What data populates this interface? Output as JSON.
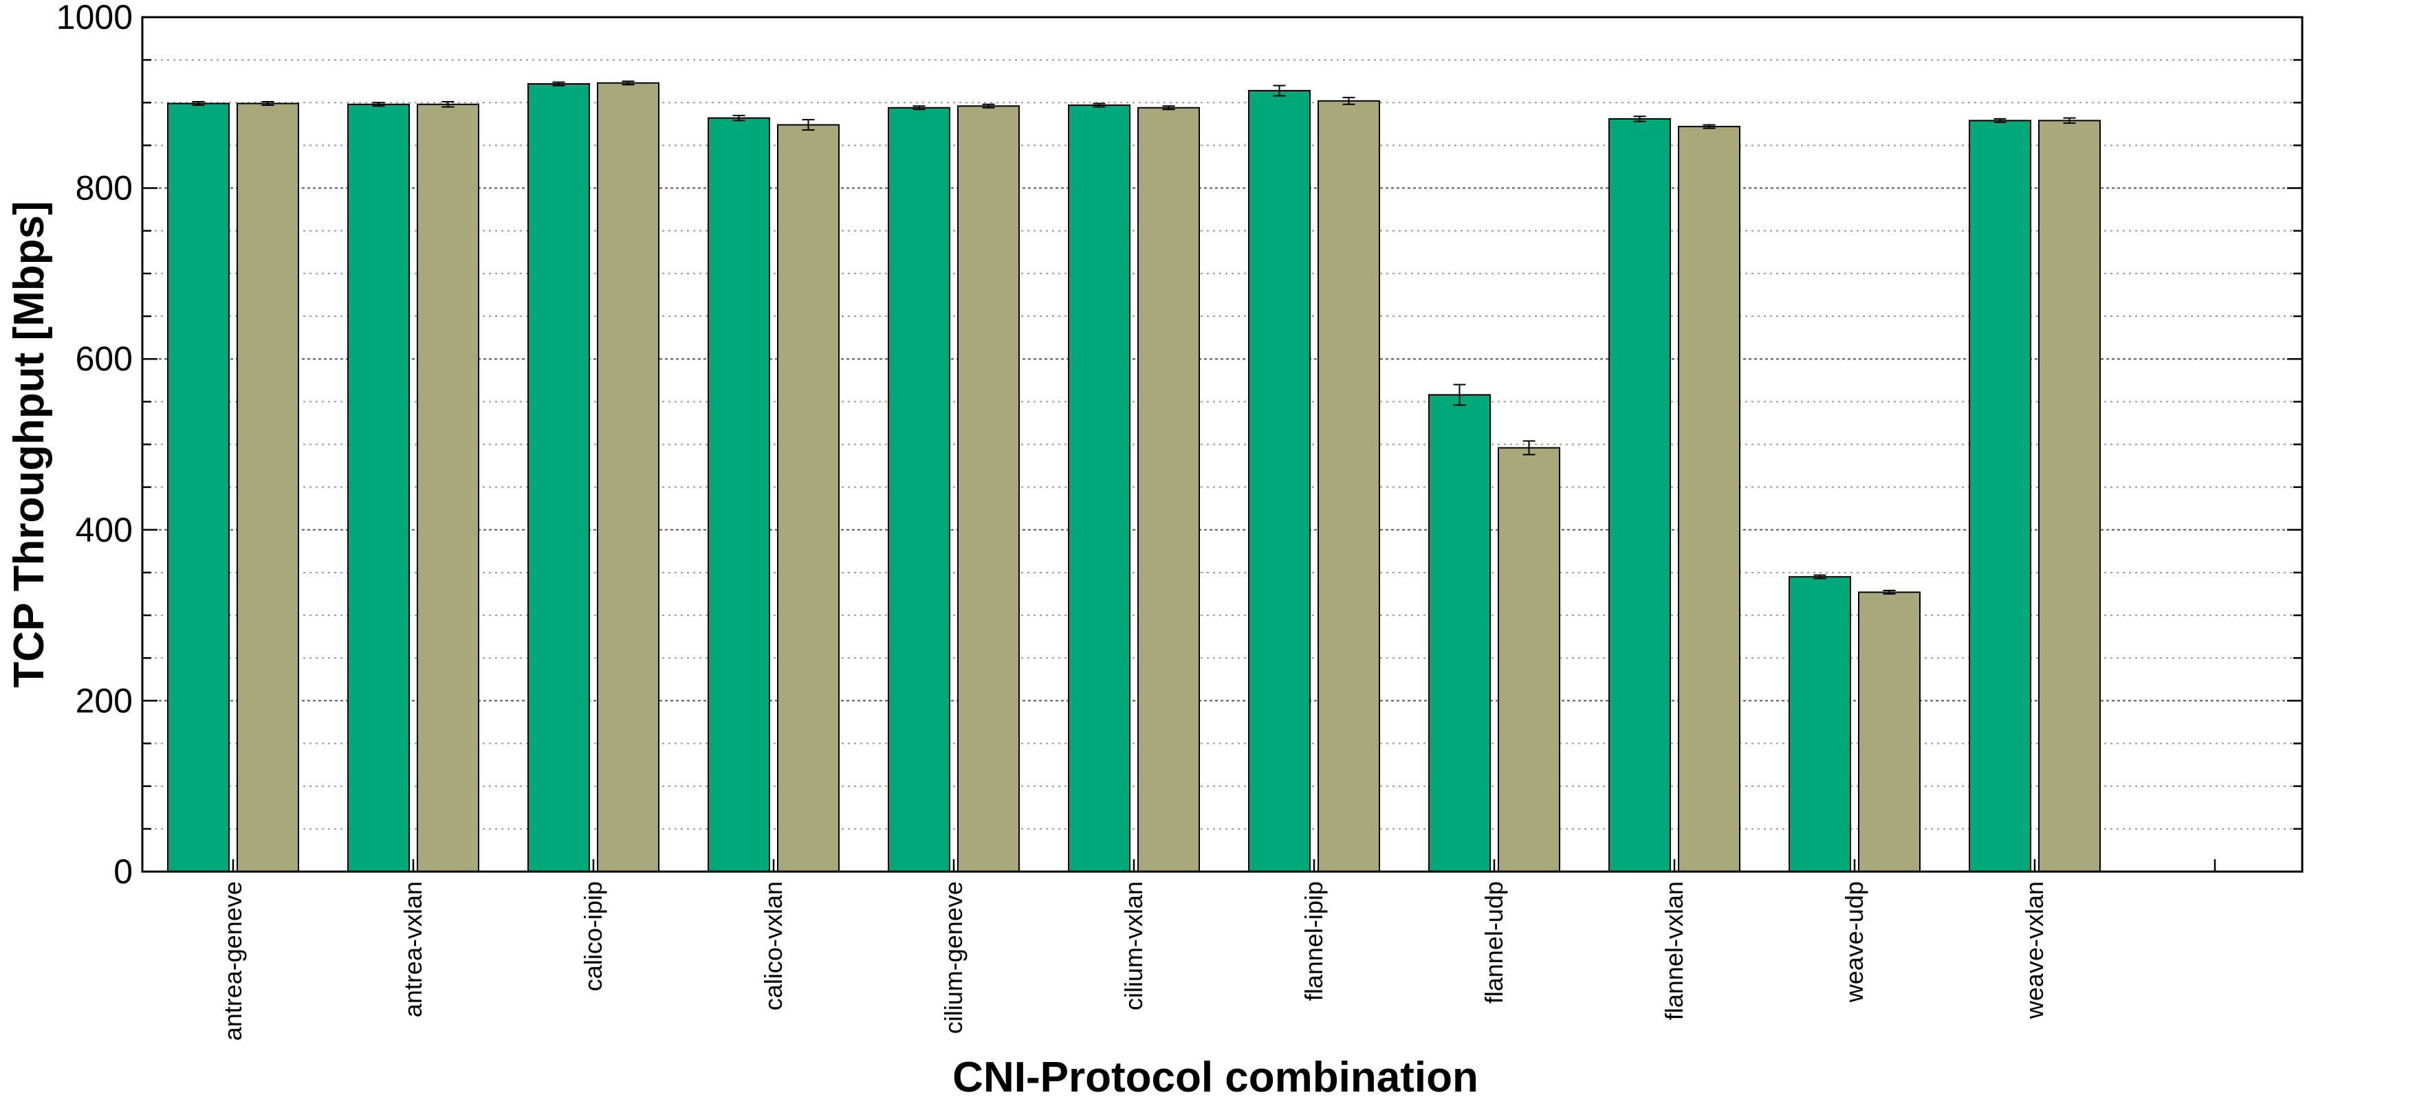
{
  "chart_data": {
    "type": "bar",
    "title": "",
    "xlabel": "CNI-Protocol combination",
    "ylabel": "TCP Throughput [Mbps]",
    "ylim": [
      0,
      1000
    ],
    "yticks": [
      0,
      200,
      400,
      600,
      800,
      1000
    ],
    "grid": true,
    "legend": "none",
    "categories": [
      "antrea-geneve",
      "antrea-vxlan",
      "calico-ipip",
      "calico-vxlan",
      "cilium-geneve",
      "cilium-vxlan",
      "flannel-ipip",
      "flannel-udp",
      "flannel-vxlan",
      "weave-udp",
      "weave-vxlan"
    ],
    "series": [
      {
        "color": "#00a87a",
        "values": [
          899,
          898,
          922,
          882,
          894,
          897,
          914,
          558,
          881,
          345,
          879
        ],
        "errors": [
          2,
          2,
          2,
          3,
          2,
          2,
          6,
          12,
          3,
          2,
          2
        ]
      },
      {
        "color": "#a8a87a",
        "values": [
          899,
          898,
          923,
          874,
          896,
          894,
          902,
          496,
          872,
          327,
          879
        ],
        "errors": [
          2,
          3,
          2,
          6,
          2,
          2,
          4,
          8,
          2,
          2,
          3
        ]
      }
    ]
  }
}
